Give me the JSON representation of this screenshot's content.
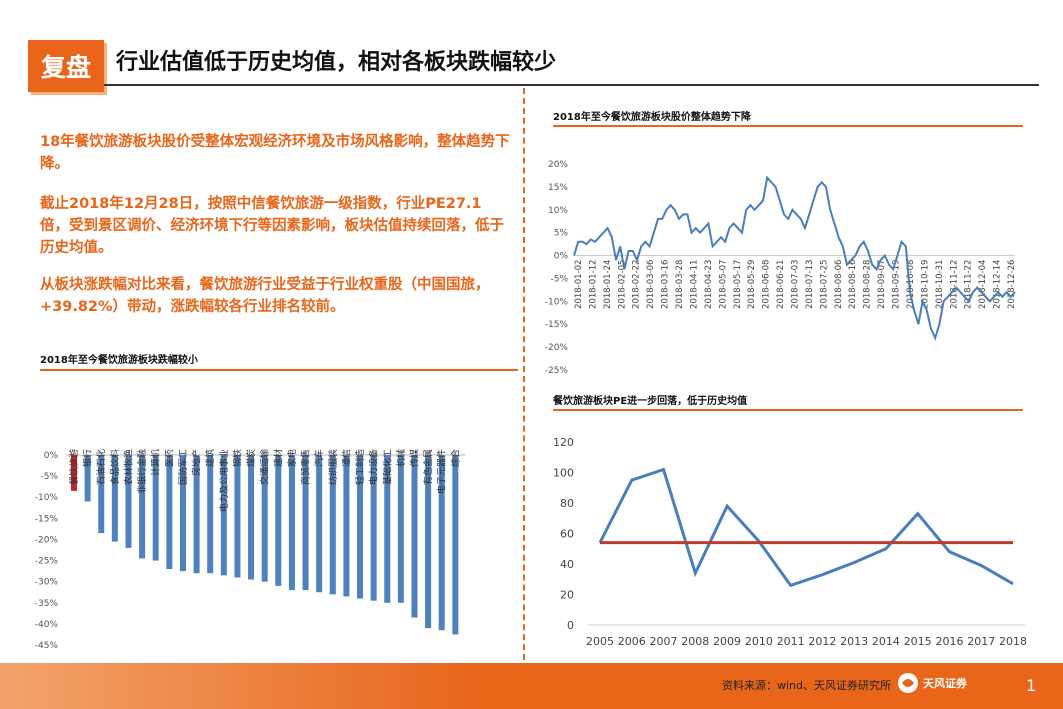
{
  "header": {
    "badge": "复盘",
    "title": "行业估值低于历史均值，相对各板块跌幅较少"
  },
  "text": {
    "para1": "18年餐饮旅游板块股价受整体宏观经济环境及市场风格影响，整体趋势下降。",
    "para2": "截止2018年12月28日，按照中信餐饮旅游一级指数，行业PE27.1倍，受到景区调价、经济环境下行等因素影响，板块估值持续回落，低于历史均值。",
    "para3": "从板块涨跌幅对比来看，餐饮旅游行业受益于行业权重股（中国国旅，+39.82%）带动，涨跌幅较各行业排名较前。"
  },
  "footer": {
    "source": "资料来源：wind、天风证券研究所",
    "logo_text": "天风证券",
    "page": "1"
  },
  "colors": {
    "accent": "#e8651a",
    "line_blue": "#4a7ebb",
    "bar_blue": "#4f81bd",
    "bar_red": "#c0292b",
    "avg_red": "#c0392b"
  },
  "chart_data": [
    {
      "type": "bar",
      "title": "2018年至今餐饮旅游板块跌幅较小",
      "categories": [
        "餐饮旅游",
        "银行",
        "石油石化",
        "食品饮料",
        "农林牧渔",
        "非银行金融",
        "计算机",
        "医药",
        "国防军工",
        "房地产",
        "建筑",
        "电力及公用事业",
        "钢铁",
        "煤炭",
        "交通运输",
        "建材",
        "家电",
        "商贸零售",
        "汽车",
        "纺织服装",
        "通信",
        "轻工制造",
        "电力设备",
        "基础化工",
        "机械",
        "传媒",
        "有色金属",
        "电子元器件",
        "综合"
      ],
      "values": [
        -8.5,
        -11,
        -18.5,
        -20.5,
        -22,
        -24.5,
        -25,
        -27,
        -27.5,
        -28,
        -28,
        -28.5,
        -29,
        -29.5,
        -30,
        -31,
        -32,
        -32,
        -32.5,
        -33,
        -33.5,
        -34,
        -34.5,
        -35,
        -35,
        -38.5,
        -41,
        -41.5,
        -42.5
      ],
      "highlight_index": 0,
      "yticks": [
        "0%",
        "-5%",
        "-10%",
        "-15%",
        "-20%",
        "-25%",
        "-30%",
        "-35%",
        "-40%",
        "-45%"
      ],
      "ylim": [
        -45,
        0
      ]
    },
    {
      "type": "line",
      "title": "2018年至今餐饮旅游板块股价整体趋势下降",
      "xlabels": [
        "2018-01-02",
        "2018-01-12",
        "2018-01-24",
        "2018-02-05",
        "2018-02-22",
        "2018-03-06",
        "2018-03-16",
        "2018-03-28",
        "2018-04-11",
        "2018-04-23",
        "2018-05-07",
        "2018-05-17",
        "2018-05-29",
        "2018-06-08",
        "2018-06-21",
        "2018-07-03",
        "2018-07-13",
        "2018-07-25",
        "2018-08-06",
        "2018-08-16",
        "2018-08-28",
        "2018-09-07",
        "2018-09-19",
        "2018-10-08",
        "2018-10-19",
        "2018-10-31",
        "2018-11-12",
        "2018-11-22",
        "2018-12-04",
        "2018-12-14",
        "2018-12-26"
      ],
      "values": [
        0,
        3,
        3,
        2.5,
        3.5,
        3,
        4,
        5,
        6,
        4,
        -1,
        2,
        -3,
        1,
        1,
        -1,
        2,
        3,
        2,
        5,
        8,
        8,
        10,
        11,
        10,
        8,
        9,
        9,
        5,
        6,
        5,
        6,
        7,
        2,
        3,
        4,
        3,
        6,
        7,
        6,
        5,
        10,
        11,
        10,
        11,
        12,
        17,
        16,
        15,
        12,
        9,
        8,
        10,
        9,
        8,
        6,
        9,
        12,
        15,
        16,
        15,
        10,
        7,
        4,
        2,
        -2,
        -1,
        0,
        2,
        3,
        1,
        -2,
        -3,
        -1,
        0,
        -2,
        -3,
        0,
        3,
        2,
        -8,
        -12,
        -15,
        -10,
        -12,
        -16,
        -18,
        -15,
        -10,
        -9,
        -8,
        -7,
        -8,
        -9,
        -10,
        -8,
        -7,
        -8,
        -9,
        -10,
        -9,
        -8,
        -9,
        -8,
        -9,
        -8
      ],
      "yticks": [
        "20%",
        "15%",
        "10%",
        "5%",
        "0%",
        "-5%",
        "-10%",
        "-15%",
        "-20%",
        "-25%"
      ],
      "ylim": [
        -25,
        20
      ]
    },
    {
      "type": "line",
      "title": "餐饮旅游板块PE进一步回落，低于历史均值",
      "x": [
        "2005",
        "2006",
        "2007",
        "2008",
        "2009",
        "2010",
        "2011",
        "2012",
        "2013",
        "2014",
        "2015",
        "2016",
        "2017",
        "2018"
      ],
      "series": [
        {
          "name": "PE",
          "values": [
            54,
            95,
            102,
            34,
            78,
            55,
            26,
            33,
            41,
            50,
            73,
            48,
            39,
            27
          ]
        },
        {
          "name": "历史均值",
          "values": [
            54,
            54,
            54,
            54,
            54,
            54,
            54,
            54,
            54,
            54,
            54,
            54,
            54,
            54
          ]
        }
      ],
      "yticks": [
        "0",
        "20",
        "40",
        "60",
        "80",
        "100",
        "120"
      ],
      "ylim": [
        0,
        120
      ]
    }
  ]
}
